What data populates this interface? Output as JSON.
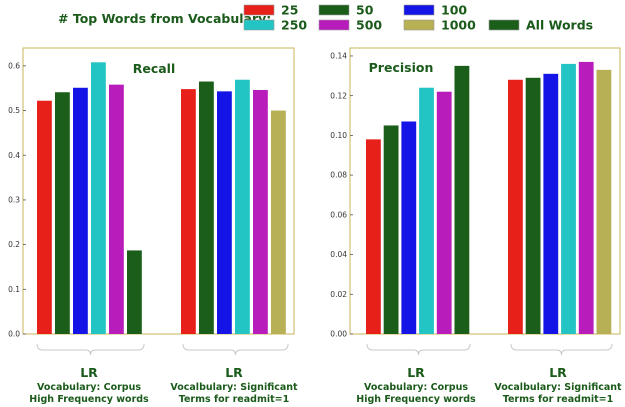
{
  "chart_data": [
    {
      "type": "bar",
      "title": "Recall",
      "ylim": [
        0,
        0.64
      ],
      "yticks": [
        "0.0",
        "0.1",
        "0.2",
        "0.3",
        "0.4",
        "0.5",
        "0.6"
      ],
      "grid": false,
      "groups": [
        {
          "title": "LR",
          "subtitle_lines": [
            "Vocabulary: Corpus",
            "High Frequency words"
          ]
        },
        {
          "title": "LR",
          "subtitle_lines": [
            "Vocalbulary: Significant",
            "Terms for readmit=1"
          ]
        }
      ],
      "series": [
        {
          "name": "25",
          "values": [
            0.522,
            0.548
          ]
        },
        {
          "name": "50",
          "values": [
            0.541,
            0.565
          ]
        },
        {
          "name": "100",
          "values": [
            0.551,
            0.543
          ]
        },
        {
          "name": "250",
          "values": [
            0.608,
            0.569
          ]
        },
        {
          "name": "500",
          "values": [
            0.558,
            0.546
          ]
        },
        {
          "name": "1000",
          "values": [
            null,
            0.5
          ]
        },
        {
          "name": "All Words",
          "values": [
            0.187,
            null
          ]
        }
      ]
    },
    {
      "type": "bar",
      "title": "Precision",
      "ylim": [
        0,
        0.144
      ],
      "yticks": [
        "0.00",
        "0.02",
        "0.04",
        "0.06",
        "0.08",
        "0.10",
        "0.12",
        "0.14"
      ],
      "grid": false,
      "groups": [
        {
          "title": "LR",
          "subtitle_lines": [
            "Vocabulary: Corpus",
            "High Frequency words"
          ]
        },
        {
          "title": "LR",
          "subtitle_lines": [
            "Vocalbulary: Significant",
            "Terms for readmit=1"
          ]
        }
      ],
      "series": [
        {
          "name": "25",
          "values": [
            0.098,
            0.128
          ]
        },
        {
          "name": "50",
          "values": [
            0.105,
            0.129
          ]
        },
        {
          "name": "100",
          "values": [
            0.107,
            0.131
          ]
        },
        {
          "name": "250",
          "values": [
            0.124,
            0.136
          ]
        },
        {
          "name": "500",
          "values": [
            0.122,
            0.137
          ]
        },
        {
          "name": "1000",
          "values": [
            null,
            0.133
          ]
        },
        {
          "name": "All Words",
          "values": [
            0.135,
            null
          ]
        }
      ]
    }
  ],
  "legend": {
    "title": "# Top Words from Vocabulary:",
    "placement": "top",
    "items": [
      {
        "label": "25",
        "color": "#e8201a"
      },
      {
        "label": "50",
        "color": "#1a5e1a"
      },
      {
        "label": "100",
        "color": "#1414e6"
      },
      {
        "label": "250",
        "color": "#23c4c4"
      },
      {
        "label": "500",
        "color": "#b81cba"
      },
      {
        "label": "1000",
        "color": "#b8b054"
      },
      {
        "label": "All Words",
        "color": "#1a5e1a"
      }
    ]
  },
  "colors": {
    "text": "#1a5a1a",
    "axis_frame": "#c8b45a",
    "bracket": "#c8c8c8"
  }
}
